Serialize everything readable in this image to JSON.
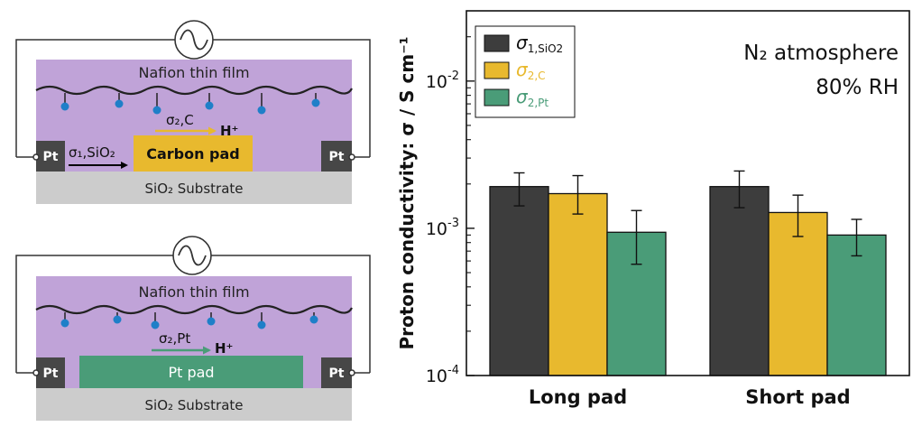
{
  "diagram_top": {
    "film_label": "Nafion thin film",
    "pad_label": "Carbon pad",
    "electrode_left": "Pt",
    "electrode_right": "Pt",
    "substrate_label": "SiO₂ Substrate",
    "sigma_surface_label": "σ₂,C",
    "sigma_interface_label": "σ₁,SiO₂",
    "proton_label": "H⁺"
  },
  "diagram_bottom": {
    "film_label": "Nafion thin film",
    "pad_label": "Pt pad",
    "electrode_left": "Pt",
    "electrode_right": "Pt",
    "substrate_label": "SiO₂ Substrate",
    "sigma_surface_label": "σ₂,Pt",
    "proton_label": "H⁺"
  },
  "colors": {
    "nafion": "#c0a3d8",
    "carbon_pad": "#e8b92e",
    "pt_pad": "#4a9c78",
    "electrode": "#474747",
    "substrate": "#cccccc",
    "ion": "#1f7fc8",
    "bar_sio2": "#3d3d3d",
    "bar_c": "#e8b92e",
    "bar_pt": "#4a9c78"
  },
  "chart_data": {
    "type": "bar",
    "categories": [
      "Long pad",
      "Short pad"
    ],
    "series": [
      {
        "name": "σ₁,SiO2",
        "sub": "1,SiO2",
        "values": [
          0.00192,
          0.00192
        ],
        "errors_low": [
          0.00142,
          0.00138
        ],
        "errors_high": [
          0.00238,
          0.00245
        ]
      },
      {
        "name": "σ₂,C",
        "sub": "2,C",
        "values": [
          0.00172,
          0.00128
        ],
        "errors_low": [
          0.00125,
          0.00088
        ],
        "errors_high": [
          0.00228,
          0.00168
        ]
      },
      {
        "name": "σ₂,Pt",
        "sub": "2,Pt",
        "values": [
          0.00094,
          0.0009
        ],
        "errors_low": [
          0.00057,
          0.00065
        ],
        "errors_high": [
          0.00132,
          0.00115
        ]
      }
    ],
    "ylabel": "Proton conductivity: σ / S cm⁻¹",
    "yscale": "log",
    "ylim": [
      0.0001,
      0.03
    ],
    "yticks": [
      {
        "value": 0.0001,
        "label": "10",
        "exp": "-4"
      },
      {
        "value": 0.001,
        "label": "10",
        "exp": "-3"
      },
      {
        "value": 0.01,
        "label": "10",
        "exp": "-2"
      }
    ],
    "annotation_line1": "N₂ atmosphere",
    "annotation_line2": "80% RH",
    "legend_position": "top-left"
  }
}
